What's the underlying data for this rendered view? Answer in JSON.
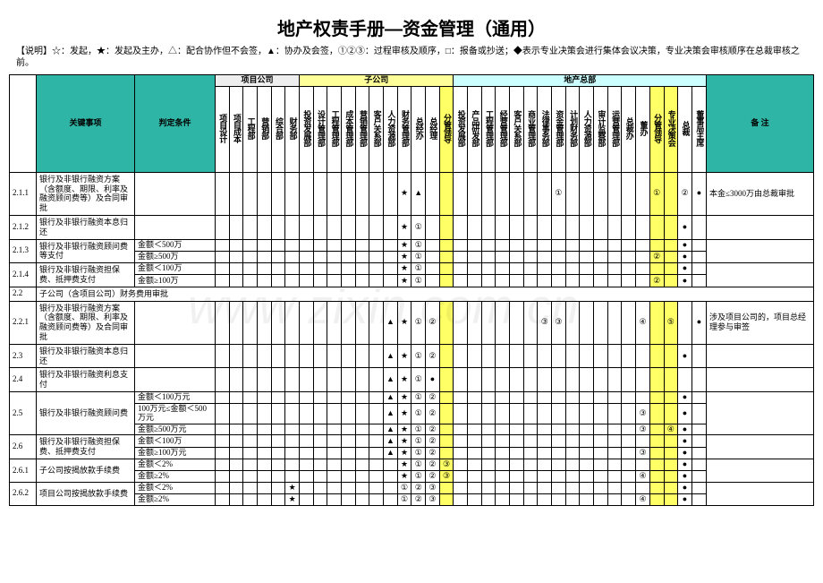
{
  "title": "地产权责手册—资金管理（通用）",
  "legend": "【说明】☆：发起，★：发起及主办，△：配合协作但不会签，▲：协办及会签，①②③：过程审核及顺序，□：报备或抄送；◆表示专业决策会进行集体会议决策，专业决策会审核顺序在总裁审核之前。",
  "header": {
    "key": "关键事项",
    "cond": "判定条件",
    "remark": "备  注",
    "groups": [
      "项目公司",
      "子公司",
      "地产总部"
    ],
    "proj_cols": [
      "项目设计",
      "项目成本",
      "工程部",
      "营销部",
      "综合部",
      "财务部"
    ],
    "sub_cols": [
      "投资发展部",
      "设计管理部",
      "工程管理部",
      "成本管理部",
      "营销管理部",
      "客户关系部",
      "人力资源部",
      "财务管理部",
      "总经办",
      "总经理",
      "分管领导"
    ],
    "hq_cols": [
      "投资发展部",
      "产品研发部",
      "工程管理部",
      "经营管理部",
      "客户关系部",
      "商业管理部",
      "法律事务部",
      "资金管理部",
      "计划财务部",
      "人力资源部",
      "审计监察部",
      "运营管理部",
      "总裁办",
      "董办",
      "分管领导",
      "专业决策会",
      "总裁",
      "董事局主席"
    ]
  },
  "rows": [
    {
      "code": "2.1.1",
      "item": "银行及非银行融资方案（含额度、期限、利率及融资顾问费等）及合同审批",
      "cond": "",
      "marks": {
        "sub7": "★",
        "sub8": "▲",
        "hq7": "①",
        "hq14": "①",
        "hq16": "②",
        "hq17": "●"
      },
      "remark": "本金≤3000万由总裁审批"
    },
    {
      "code": "2.1.2",
      "item": "银行及非银行融资本息归还",
      "cond": "",
      "marks": {
        "sub7": "★",
        "sub8": "①",
        "hq16": "●"
      }
    },
    {
      "code": "2.1.3",
      "item": "银行及非银行融资顾问费等支付",
      "cond": "金额＜500万",
      "marks": {
        "sub7": "★",
        "sub8": "①",
        "hq16": "●"
      },
      "span": 2
    },
    {
      "code": "",
      "item": "",
      "cond": "金额≥500万",
      "marks": {
        "sub7": "★",
        "sub8": "①",
        "hq14": "②",
        "hq16": "●"
      }
    },
    {
      "code": "2.1.4",
      "item": "银行及非银行融资担保费、抵押费支付",
      "cond": "金额＜100万",
      "marks": {
        "sub7": "★",
        "sub8": "①",
        "hq16": "●"
      },
      "span": 2
    },
    {
      "code": "",
      "item": "",
      "cond": "金额≥100万",
      "marks": {
        "sub7": "★",
        "sub8": "①",
        "hq14": "②",
        "hq16": "●"
      }
    },
    {
      "code": "2.2",
      "item": "子公司（含项目公司）财务费用审批",
      "cond": "",
      "colspan": true
    },
    {
      "code": "2.2.1",
      "item": "银行及非银行融资方案（含额度、期限、利率及融资顾问费等）及合同审批",
      "cond": "",
      "marks": {
        "sub6": "▲",
        "sub7": "★",
        "sub8": "①",
        "sub9": "②",
        "hq6": "③",
        "hq7": "③",
        "hq13": "④",
        "hq15": "⑤",
        "hq17": "●"
      },
      "remark": "涉及项目公司的，项目总经理参与审签"
    },
    {
      "code": "2.3",
      "item": "银行及非银行融资本息归还",
      "cond": "",
      "marks": {
        "sub6": "▲",
        "sub7": "★",
        "sub8": "①",
        "sub9": "②",
        "hq16": "●"
      }
    },
    {
      "code": "2.4",
      "item": "银行及非银行融资利息支付",
      "cond": "",
      "marks": {
        "sub6": "▲",
        "sub7": "★",
        "sub8": "①",
        "sub9": "●"
      }
    },
    {
      "code": "2.5",
      "item": "银行及非银行融资顾问费",
      "cond": "金额＜100万元",
      "marks": {
        "sub6": "▲",
        "sub7": "★",
        "sub8": "①",
        "sub9": "②",
        "hq16": "●"
      },
      "span": 3
    },
    {
      "code": "",
      "item": "",
      "cond": "100万元≤金额＜500万元",
      "marks": {
        "sub6": "▲",
        "sub7": "★",
        "sub8": "①",
        "sub9": "②",
        "hq13": "③",
        "hq16": "●"
      }
    },
    {
      "code": "",
      "item": "",
      "cond": "金额≥500万元",
      "marks": {
        "sub6": "▲",
        "sub7": "★",
        "sub8": "①",
        "sub9": "②",
        "hq13": "③",
        "hq15": "④",
        "hq16": "●"
      }
    },
    {
      "code": "2.6",
      "item": "银行及非银行融资担保费、抵押费支付",
      "cond": "金额＜100万",
      "marks": {
        "sub6": "▲",
        "sub7": "★",
        "sub8": "①",
        "sub9": "②",
        "hq16": "●"
      },
      "span": 2
    },
    {
      "code": "",
      "item": "",
      "cond": "金额≥100万元",
      "marks": {
        "sub6": "▲",
        "sub7": "★",
        "sub8": "①",
        "sub9": "②",
        "hq13": "③",
        "hq16": "●"
      }
    },
    {
      "code": "2.6.1",
      "item": "子公司按揭放款手续费",
      "cond": "金额＜2%",
      "marks": {
        "sub7": "★",
        "sub8": "①",
        "sub9": "②",
        "sub10": "③",
        "hq16": "●"
      },
      "span": 2
    },
    {
      "code": "",
      "item": "",
      "cond": "金额≥2%",
      "marks": {
        "sub7": "★",
        "sub8": "①",
        "sub9": "②",
        "sub10": "③",
        "hq13": "④",
        "hq16": "●"
      }
    },
    {
      "code": "2.6.2",
      "item": "项目公司按揭放款手续费",
      "cond": "金额＜2%",
      "marks": {
        "proj5": "★",
        "sub7": "①",
        "sub8": "②",
        "sub9": "③",
        "hq16": "●"
      },
      "span": 2
    },
    {
      "code": "",
      "item": "",
      "cond": "金额≥2%",
      "marks": {
        "proj5": "★",
        "sub7": "①",
        "sub8": "②",
        "sub9": "③",
        "hq13": "④",
        "hq16": "●"
      }
    }
  ],
  "watermark": "www zixin com cn"
}
